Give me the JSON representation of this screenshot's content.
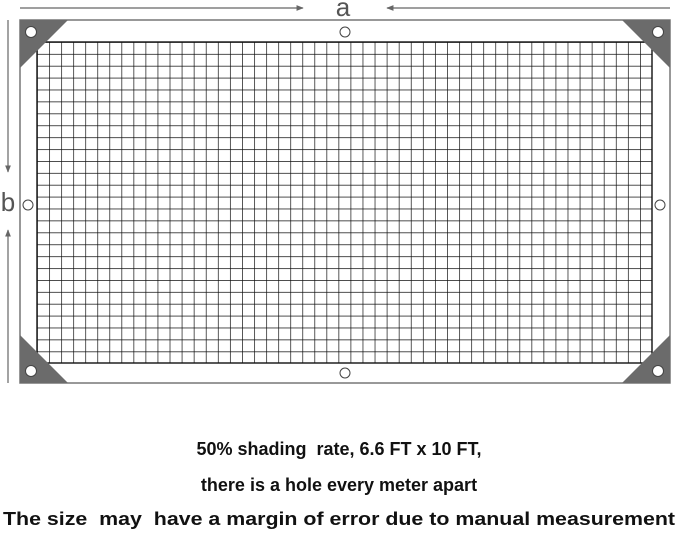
{
  "dimensions": {
    "width_label": "a",
    "height_label": "b"
  },
  "caption": [
    "50% shading  rate, 6.6 FT x 10 FT,",
    "there is a hole every meter apart",
    "The size  may  have a margin of error due to manual measurement"
  ]
}
